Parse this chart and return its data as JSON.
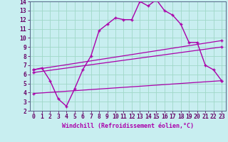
{
  "background_color": "#c8eef0",
  "grid_color": "#a0d8c8",
  "line_color": "#aa00aa",
  "xlabel": "Windchill (Refroidissement éolien,°C)",
  "xlabel_fontsize": 6.0,
  "tick_fontsize": 5.8,
  "xlim": [
    -0.5,
    23.5
  ],
  "ylim": [
    2,
    14
  ],
  "xticks": [
    0,
    1,
    2,
    3,
    4,
    5,
    6,
    7,
    8,
    9,
    10,
    11,
    12,
    13,
    14,
    15,
    16,
    17,
    18,
    19,
    20,
    21,
    22,
    23
  ],
  "yticks": [
    2,
    3,
    4,
    5,
    6,
    7,
    8,
    9,
    10,
    11,
    12,
    13,
    14
  ],
  "line1_x": [
    0,
    1,
    2,
    3,
    4,
    5,
    6,
    7,
    8,
    9,
    10,
    11,
    12,
    13,
    14,
    15,
    16,
    17,
    18,
    19,
    20,
    21,
    22,
    23
  ],
  "line1_y": [
    6.5,
    6.7,
    5.3,
    3.3,
    2.5,
    4.4,
    6.5,
    8.0,
    10.8,
    11.5,
    12.2,
    12.0,
    12.0,
    14.0,
    13.5,
    14.2,
    13.0,
    12.5,
    11.5,
    9.5,
    9.5,
    7.0,
    6.5,
    5.3
  ],
  "line2_x": [
    0,
    23
  ],
  "line2_y": [
    6.5,
    9.7
  ],
  "line3_x": [
    0,
    23
  ],
  "line3_y": [
    6.2,
    9.0
  ],
  "line4_x": [
    0,
    23
  ],
  "line4_y": [
    3.9,
    5.3
  ]
}
